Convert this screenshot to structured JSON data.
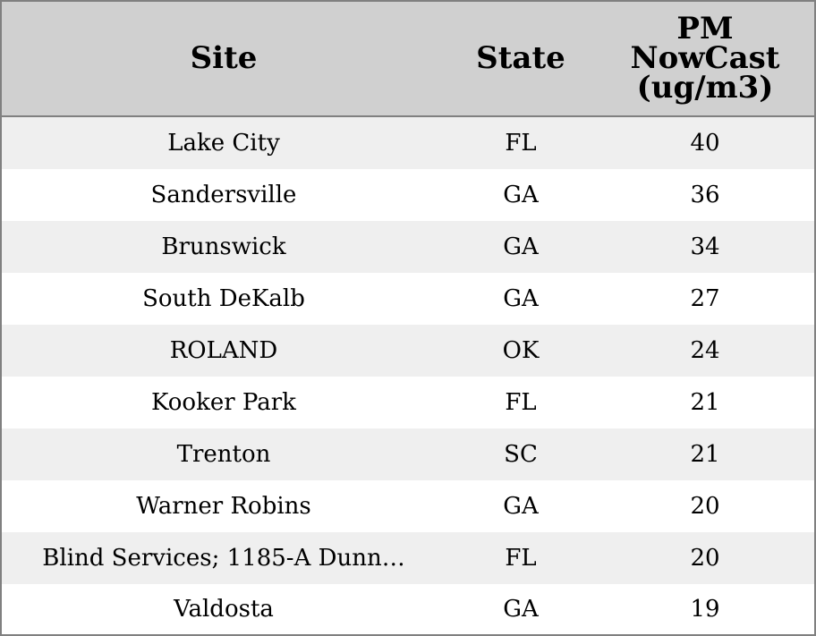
{
  "table": {
    "headers": {
      "site": "Site",
      "state": "State",
      "pm": "PM\nNowCast\n(ug/m3)"
    },
    "rows": [
      {
        "site": "Lake City",
        "state": "FL",
        "pm": "40"
      },
      {
        "site": "Sandersville",
        "state": "GA",
        "pm": "36"
      },
      {
        "site": "Brunswick",
        "state": "GA",
        "pm": "34"
      },
      {
        "site": "South DeKalb",
        "state": "GA",
        "pm": "27"
      },
      {
        "site": "ROLAND",
        "state": "OK",
        "pm": "24"
      },
      {
        "site": "Kooker Park",
        "state": "FL",
        "pm": "21"
      },
      {
        "site": "Trenton",
        "state": "SC",
        "pm": "21"
      },
      {
        "site": "Warner Robins",
        "state": "GA",
        "pm": "20"
      },
      {
        "site": "Blind Services; 1185-A Dunn…",
        "state": "FL",
        "pm": "20"
      },
      {
        "site": "Valdosta",
        "state": "GA",
        "pm": "19"
      }
    ]
  },
  "colors": {
    "header_bg": "#d0d0d0",
    "row_alt_bg": "#efefef",
    "row_bg": "#ffffff",
    "border": "#808080"
  }
}
